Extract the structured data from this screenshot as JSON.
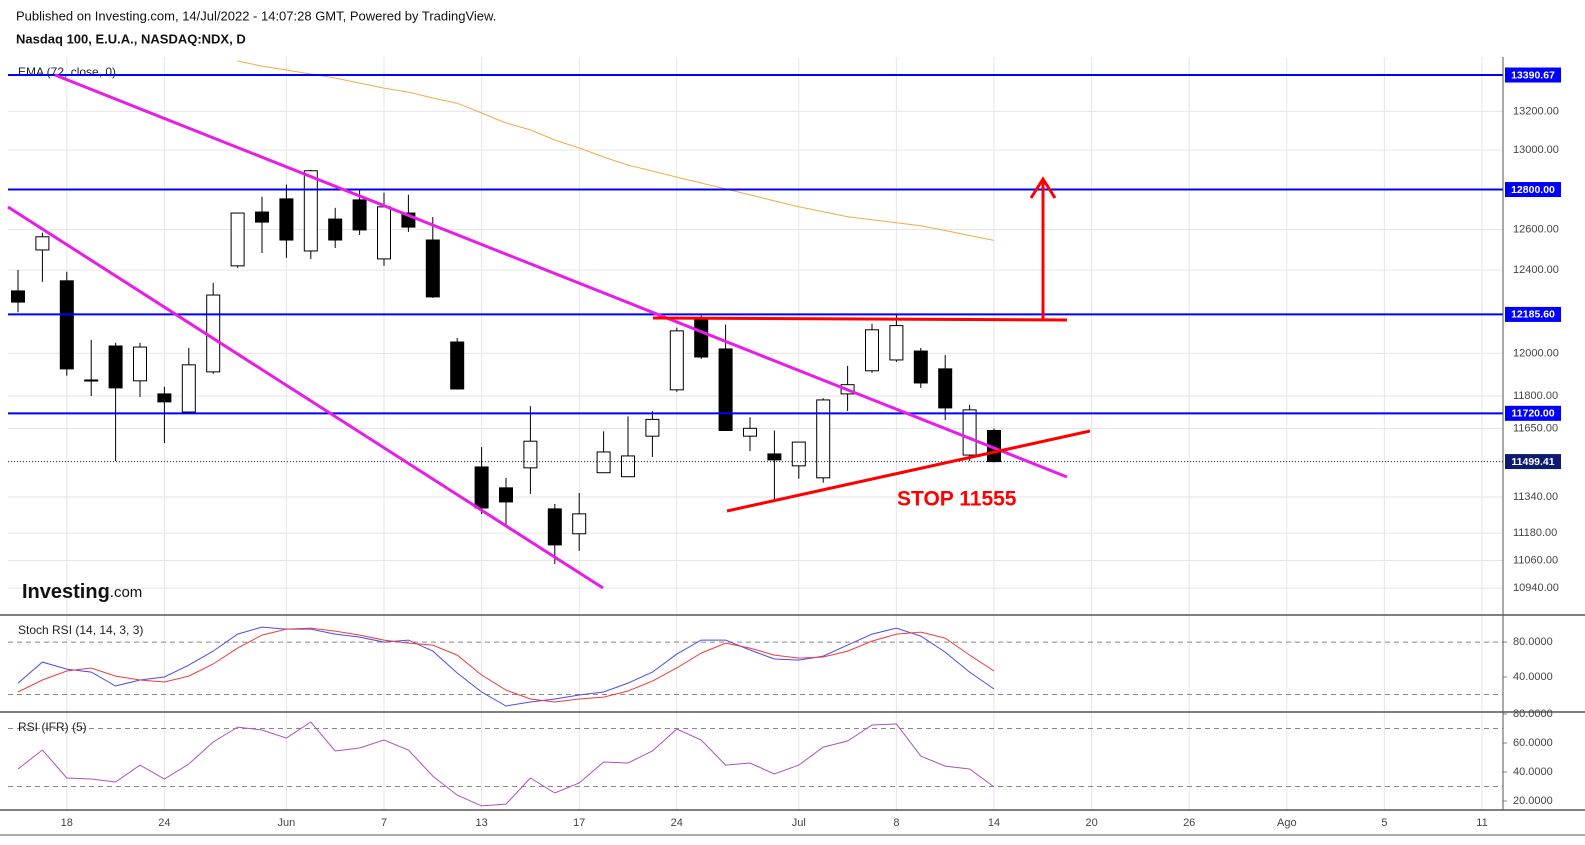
{
  "header": {
    "published": "Published on Investing.com, 14/Jul/2022 - 14:07:28 GMT, Powered by TradingView.",
    "symbol": "Nasdaq 100, E.U.A., NASDAQ:NDX, D"
  },
  "logo": {
    "brand": "Investing",
    "suffix": ".com"
  },
  "annotations": {
    "stop": "STOP 11555"
  },
  "chart_data": [
    {
      "type": "candlestick",
      "log_scale": true,
      "grid": true,
      "up_color": "#ffffff",
      "down_color": "#000000",
      "categories": [
        null,
        null,
        "18",
        null,
        null,
        null,
        "24",
        null,
        null,
        null,
        null,
        "Jun",
        null,
        null,
        null,
        "7",
        null,
        null,
        null,
        "13",
        null,
        null,
        null,
        "17",
        null,
        null,
        null,
        "24",
        null,
        null,
        null,
        null,
        "Jul",
        null,
        null,
        null,
        "8",
        null,
        null,
        null,
        "14",
        null,
        null,
        null,
        "20",
        null,
        null,
        null,
        "26",
        null,
        null,
        null,
        "Ago",
        null,
        null,
        null,
        "5",
        null,
        null,
        null,
        "11"
      ],
      "open": [
        12299,
        12499,
        12348,
        11875,
        12035,
        11871,
        11810,
        11726,
        11913,
        12421,
        12687,
        12753,
        12494,
        12652,
        12748,
        12455,
        12682,
        12548,
        12054,
        11475,
        11381,
        11471,
        11287,
        11177,
        11449,
        11431,
        11615,
        11829,
        12161,
        12021,
        11615,
        11534,
        11480,
        11426,
        11810,
        11918,
        11969,
        12011,
        11927,
        11529,
        11641,
        null,
        null,
        null,
        null,
        null,
        null,
        null,
        null,
        null,
        null,
        null,
        null,
        null,
        null,
        null,
        null,
        null,
        null,
        null,
        null
      ],
      "high": [
        12401,
        12584,
        12392,
        12064,
        12050,
        12050,
        11843,
        12026,
        12338,
        12685,
        12764,
        12825,
        12900,
        12708,
        12799,
        12784,
        12774,
        12662,
        12073,
        11566,
        11426,
        11753,
        11309,
        11358,
        11637,
        11706,
        11730,
        12122,
        12180,
        12137,
        11702,
        11641,
        11588,
        11790,
        11941,
        12141,
        12185,
        12026,
        11992,
        11759,
        11650,
        null,
        null,
        null,
        null,
        null,
        null,
        null,
        null,
        null,
        null,
        null,
        null,
        null,
        null,
        null,
        null,
        null,
        null,
        null,
        null
      ],
      "low": [
        12196,
        12343,
        11895,
        11800,
        11502,
        11796,
        11584,
        11722,
        11904,
        12411,
        12484,
        12460,
        12455,
        12509,
        12573,
        12421,
        12588,
        12265,
        11830,
        11264,
        11216,
        11354,
        11045,
        11102,
        11449,
        11431,
        11520,
        11820,
        11974,
        11641,
        11547,
        11327,
        11422,
        11404,
        11731,
        11909,
        11960,
        11838,
        11689,
        11502,
        11495,
        null,
        null,
        null,
        null,
        null,
        null,
        null,
        null,
        null,
        null,
        null,
        null,
        null,
        null,
        null,
        null,
        null,
        null,
        null,
        null
      ],
      "close": [
        12245,
        12564,
        11927,
        11870,
        11838,
        12030,
        11773,
        11946,
        12279,
        12682,
        12637,
        12548,
        12895,
        12548,
        12598,
        12713,
        12612,
        12270,
        11833,
        11291,
        11318,
        11592,
        11128,
        11265,
        11543,
        11525,
        11692,
        12107,
        11983,
        11641,
        11651,
        11507,
        11588,
        11782,
        11853,
        12112,
        12132,
        11861,
        11745,
        11736,
        11499.41,
        null,
        null,
        null,
        null,
        null,
        null,
        null,
        null,
        null,
        null,
        null,
        null,
        null,
        null,
        null,
        null,
        null,
        null,
        null,
        null
      ],
      "overlays": [
        {
          "name": "EMA (72, close, 0)",
          "color": "#f5a94a",
          "values": [
            null,
            null,
            null,
            null,
            null,
            null,
            null,
            null,
            null,
            13465,
            13438,
            13417,
            13396,
            13375,
            13348,
            13322,
            13301,
            13270,
            13243,
            13192,
            13140,
            13104,
            13052,
            13011,
            12965,
            12924,
            12894,
            12863,
            12833,
            12803,
            12773,
            12743,
            12714,
            12689,
            12664,
            12649,
            12634,
            12619,
            12595,
            12570,
            12546,
            null,
            null,
            null,
            null,
            null,
            null,
            null,
            null,
            null,
            null,
            null,
            null,
            null,
            null,
            null,
            null,
            null,
            null,
            null,
            null
          ]
        }
      ],
      "ylim": [
        10825,
        13486
      ],
      "yticks": [
        {
          "value": 13200,
          "label": "13200.00"
        },
        {
          "value": 13000,
          "label": "13000.00"
        },
        {
          "value": 12600,
          "label": "12600.00"
        },
        {
          "value": 12400,
          "label": "12400.00"
        },
        {
          "value": 12000,
          "label": "12000.00"
        },
        {
          "value": 11800,
          "label": "11800.00"
        },
        {
          "value": 11650,
          "label": "11650.00"
        },
        {
          "value": 11340,
          "label": "11340.00"
        },
        {
          "value": 11180,
          "label": "11180.00"
        },
        {
          "value": 11060,
          "label": "11060.00"
        },
        {
          "value": 10940,
          "label": "10940.00"
        }
      ],
      "levels": [
        13390.67,
        {
          "value": 12800,
          "label": "12800.00"
        },
        {
          "value": 12185.6,
          "label": "12185.60"
        },
        {
          "value": 11720,
          "label": "11720.00"
        }
      ],
      "level_color": "#0000ff",
      "last_price": 11499.41,
      "last_price_color": "#0d1b6e"
    },
    {
      "type": "line",
      "title": "Stoch RSI (14, 14, 3, 3)",
      "ylim": [
        0,
        111
      ],
      "yticks": [
        {
          "value": 80,
          "label": "80.0000"
        },
        {
          "value": 40,
          "label": "40.0000"
        }
      ],
      "bands": [
        80,
        20
      ],
      "series": [
        {
          "color": "#4b4bf2",
          "values": [
            33.1,
            57.1,
            49.1,
            45.7,
            29.7,
            36.6,
            40.0,
            53.7,
            69.7,
            89.1,
            97.1,
            94.9,
            94.9,
            89.1,
            85.7,
            80.0,
            82.3,
            69.7,
            44.6,
            22.9,
            6.9,
            11.4,
            14.9,
            19.4,
            22.9,
            33.1,
            45.7,
            66.3,
            82.3,
            82.3,
            70.9,
            60.6,
            59.4,
            64.0,
            76.6,
            89.1,
            96.0,
            86.9,
            68.6,
            45.7,
            26.3,
            null,
            null,
            null,
            null,
            null,
            null,
            null,
            null,
            null,
            null,
            null,
            null,
            null,
            null,
            null,
            null,
            null,
            null,
            null,
            null
          ]
        },
        {
          "color": "#f23c3c",
          "values": [
            22.9,
            36.6,
            46.9,
            50.3,
            41.1,
            36.6,
            34.3,
            41.1,
            54.9,
            73.1,
            88.0,
            94.9,
            96.0,
            92.6,
            88.0,
            82.3,
            78.9,
            76.6,
            65.1,
            42.3,
            25.1,
            14.9,
            11.4,
            14.9,
            17.1,
            24.0,
            35.4,
            50.3,
            67.4,
            78.9,
            73.1,
            65.1,
            61.7,
            62.9,
            69.7,
            81.1,
            89.1,
            91.4,
            84.6,
            65.1,
            46.9,
            null,
            null,
            null,
            null,
            null,
            null,
            null,
            null,
            null,
            null,
            null,
            null,
            null,
            null,
            null,
            null,
            null,
            null,
            null,
            null
          ]
        }
      ]
    },
    {
      "type": "line",
      "title": "RSI (IFR) (5)",
      "ylim": [
        13.8,
        81.4
      ],
      "yticks": [
        {
          "value": 80,
          "label": "80.0000"
        },
        {
          "value": 60,
          "label": "60.0000"
        },
        {
          "value": 40,
          "label": "40.0000"
        },
        {
          "value": 20,
          "label": "20.0000"
        }
      ],
      "bands": [
        70,
        30
      ],
      "series": [
        {
          "color": "#b04fc4",
          "values": [
            42.1,
            55.2,
            35.9,
            35.2,
            33.1,
            44.8,
            35.2,
            45.5,
            60.7,
            71.0,
            69.0,
            63.4,
            74.5,
            54.5,
            56.6,
            62.1,
            55.2,
            37.2,
            24.1,
            16.6,
            17.9,
            35.9,
            25.5,
            32.4,
            46.9,
            46.2,
            54.5,
            69.7,
            62.1,
            44.8,
            46.2,
            38.6,
            44.8,
            57.2,
            61.4,
            72.4,
            73.1,
            51.0,
            44.1,
            42.1,
            29.7,
            null,
            null,
            null,
            null,
            null,
            null,
            null,
            null,
            null,
            null,
            null,
            null,
            null,
            null,
            null,
            null,
            null,
            null,
            null,
            null
          ]
        }
      ]
    }
  ]
}
